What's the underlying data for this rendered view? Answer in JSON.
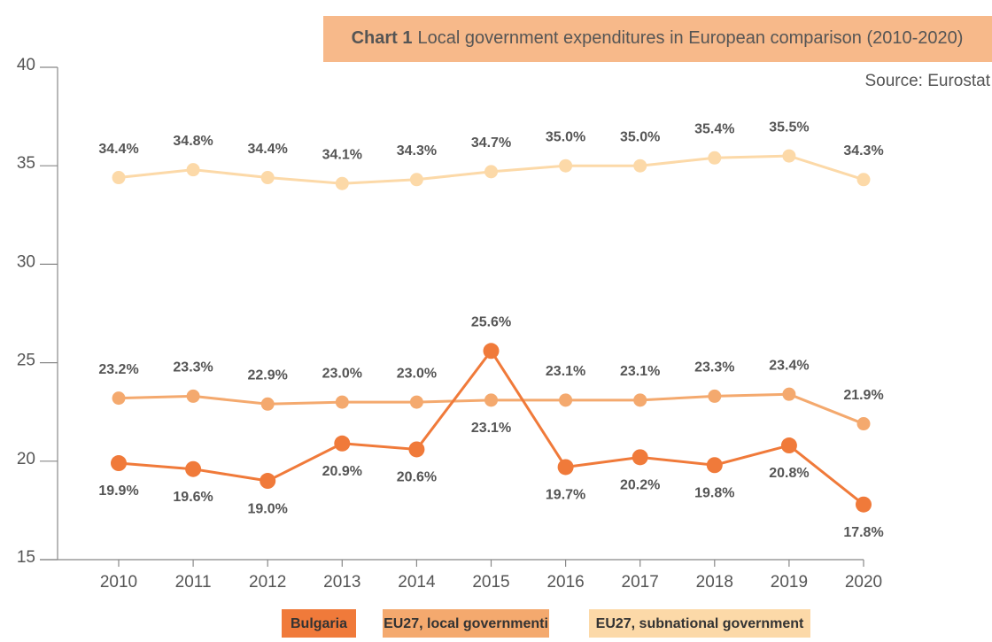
{
  "chart_data": {
    "type": "line",
    "title_label": "Chart 1",
    "title": "Local government expenditures in European comparison (2010-2020)",
    "source": "Source: Eurostat",
    "categories": [
      "2010",
      "2011",
      "2012",
      "2013",
      "2014",
      "2015",
      "2016",
      "2017",
      "2018",
      "2019",
      "2020"
    ],
    "series": [
      {
        "name": "Bulgaria",
        "color": "#f07a3a",
        "values": [
          19.9,
          19.6,
          19.0,
          20.9,
          20.6,
          25.6,
          19.7,
          20.2,
          19.8,
          20.8,
          17.8
        ],
        "value_labels": [
          "19.9%",
          "19.6%",
          "19.0%",
          "20.9%",
          "20.6%",
          "25.6%",
          "19.7%",
          "20.2%",
          "19.8%",
          "20.8%",
          "17.8%"
        ]
      },
      {
        "name": "EU27, local governmenti",
        "color": "#f4a96e",
        "values": [
          23.2,
          23.3,
          22.9,
          23.0,
          23.0,
          23.1,
          23.1,
          23.1,
          23.3,
          23.4,
          21.9
        ],
        "value_labels": [
          "23.2%",
          "23.3%",
          "22.9%",
          "23.0%",
          "23.0%",
          "23.1%",
          "23.1%",
          "23.1%",
          "23.3%",
          "23.4%",
          "21.9%"
        ]
      },
      {
        "name": "EU27, subnational government",
        "color": "#fcd9a8",
        "values": [
          34.4,
          34.8,
          34.4,
          34.1,
          34.3,
          34.7,
          35.0,
          35.0,
          35.4,
          35.5,
          34.3
        ],
        "value_labels": [
          "34.4%",
          "34.8%",
          "34.4%",
          "34.1%",
          "34.3%",
          "34.7%",
          "35.0%",
          "35.0%",
          "35.4%",
          "35.5%",
          "34.3%"
        ]
      }
    ],
    "ylim": [
      15,
      40
    ],
    "yticks": [
      15,
      20,
      25,
      30,
      35,
      40
    ]
  }
}
